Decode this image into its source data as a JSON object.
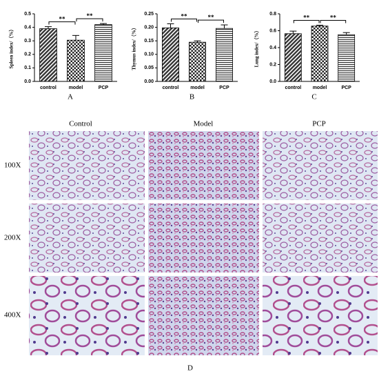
{
  "chart_data": [
    {
      "type": "bar",
      "panel_label": "A",
      "y_label": "Spleen index/（%）",
      "categories": [
        "control",
        "model",
        "PCP"
      ],
      "values": [
        0.39,
        0.305,
        0.42
      ],
      "errors": [
        0.015,
        0.035,
        0.008
      ],
      "ylim": [
        0,
        0.5
      ],
      "yticks": [
        {
          "value": 0,
          "label": "0.0"
        },
        0.1,
        0.2,
        0.3,
        0.4,
        0.5
      ],
      "annotations": [
        "**",
        "**"
      ]
    },
    {
      "type": "bar",
      "panel_label": "B",
      "y_label": "Thymus index/（%）",
      "categories": [
        "control",
        "model",
        "PCP"
      ],
      "values": [
        0.198,
        0.145,
        0.196
      ],
      "errors": [
        0.015,
        0.005,
        0.013
      ],
      "ylim": [
        0,
        0.25
      ],
      "yticks": [
        {
          "value": 0,
          "label": "0.00"
        },
        {
          "value": 0.05,
          "label": "0.05"
        },
        {
          "value": 0.1,
          "label": "0.10"
        },
        {
          "value": 0.15,
          "label": "0.15"
        },
        {
          "value": 0.2,
          "label": "0.20"
        },
        {
          "value": 0.25,
          "label": "0.25"
        }
      ],
      "annotations": [
        "**",
        "**"
      ]
    },
    {
      "type": "bar",
      "panel_label": "C",
      "y_label": "Lung index/（%）",
      "categories": [
        "control",
        "model",
        "PCP"
      ],
      "values": [
        0.565,
        0.655,
        0.553
      ],
      "errors": [
        0.03,
        0.01,
        0.025
      ],
      "ylim": [
        0,
        0.8
      ],
      "yticks": [
        {
          "value": 0,
          "label": "0.0"
        },
        0.2,
        0.4,
        0.6,
        0.8
      ],
      "annotations": [
        "**",
        "**"
      ]
    }
  ],
  "histology": {
    "columns": [
      "Control",
      "Model",
      "PCP"
    ],
    "rows": [
      "100X",
      "200X",
      "400X"
    ],
    "panel_label": "D"
  }
}
